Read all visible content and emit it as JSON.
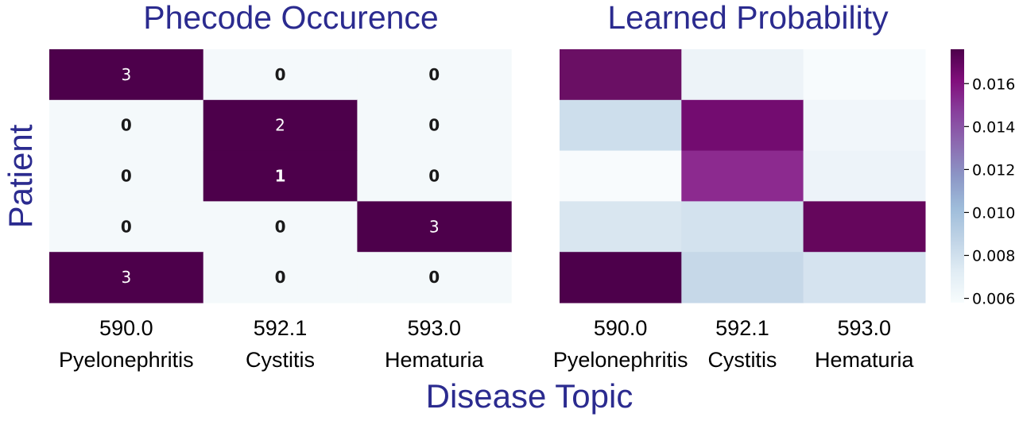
{
  "figure": {
    "title_color": "#2b2b8f",
    "ylabel": "Patient",
    "xlabel": "Disease Topic"
  },
  "chart_data": [
    {
      "type": "heatmap",
      "title": "Phecode Occurence",
      "x_codes": [
        "590.0",
        "592.1",
        "593.0"
      ],
      "x_names": [
        "Pyelonephritis",
        "Cystitis",
        "Hematuria"
      ],
      "rows": 5,
      "values": [
        [
          3,
          0,
          0
        ],
        [
          0,
          2,
          0
        ],
        [
          0,
          1,
          0
        ],
        [
          0,
          0,
          3
        ],
        [
          3,
          0,
          0
        ]
      ],
      "annot_labels": [
        [
          "3",
          "0",
          "0"
        ],
        [
          "0",
          "2",
          "0"
        ],
        [
          "0",
          "1",
          "0"
        ],
        [
          "0",
          "0",
          "3"
        ],
        [
          "3",
          "0",
          "0"
        ]
      ],
      "fill_colors": [
        [
          "#4d004b",
          "#f4f9fb",
          "#f4f9fb"
        ],
        [
          "#f4f9fb",
          "#4d004b",
          "#f4f9fb"
        ],
        [
          "#f4f9fb",
          "#4d004b",
          "#f4f9fb"
        ],
        [
          "#f4f9fb",
          "#f4f9fb",
          "#4d004b"
        ],
        [
          "#4d004b",
          "#f4f9fb",
          "#f4f9fb"
        ]
      ]
    },
    {
      "type": "heatmap",
      "title": "Learned Probability",
      "x_codes": [
        "590.0",
        "592.1",
        "593.0"
      ],
      "x_names": [
        "Pyelonephritis",
        "Cystitis",
        "Hematuria"
      ],
      "rows": 5,
      "values": [
        [
          0.017,
          0.0067,
          0.0061
        ],
        [
          0.0088,
          0.0163,
          0.0062
        ],
        [
          0.0061,
          0.0147,
          0.0065
        ],
        [
          0.0081,
          0.0085,
          0.0173
        ],
        [
          0.0176,
          0.009,
          0.0084
        ]
      ],
      "fill_colors": [
        [
          "#6a0f64",
          "#edf3f8",
          "#f7fbfd"
        ],
        [
          "#cddeec",
          "#730c70",
          "#f1f6fa"
        ],
        [
          "#f8fbfd",
          "#8c2a8f",
          "#edf3f9"
        ],
        [
          "#d9e6f0",
          "#d3e2ee",
          "#65065c"
        ],
        [
          "#4d004b",
          "#c6d8e8",
          "#d5e3ef"
        ]
      ],
      "colorbar": {
        "vmin": 0.0058,
        "vmax": 0.0176,
        "ticks": [
          0.006,
          0.008,
          0.01,
          0.012,
          0.014,
          0.016
        ],
        "tick_labels": [
          "0.006",
          "0.008",
          "0.010",
          "0.012",
          "0.014",
          "0.016"
        ],
        "colormap": [
          "#f7fcfd",
          "#e0ecf4",
          "#bfd3e6",
          "#9ebcda",
          "#8c96c6",
          "#8c6bb1",
          "#88419d",
          "#810f7c",
          "#4d004b"
        ]
      }
    }
  ]
}
